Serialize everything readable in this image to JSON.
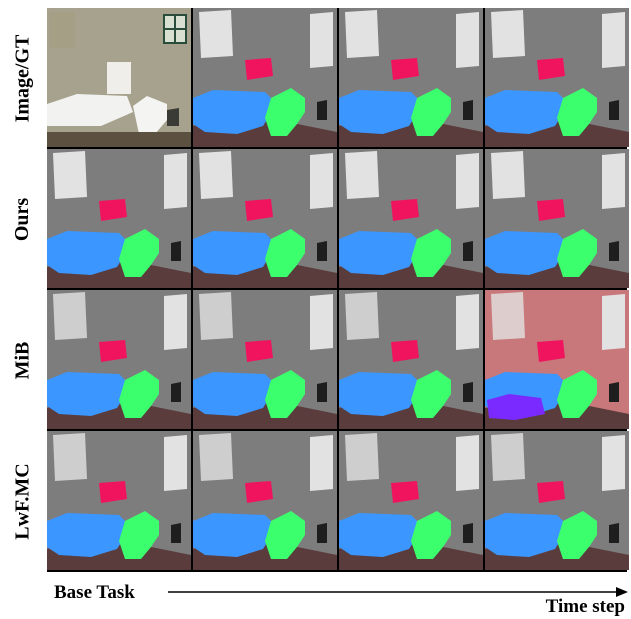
{
  "rows": [
    {
      "label": "Image/GT",
      "cells": [
        "photo",
        "seg",
        "seg",
        "seg"
      ]
    },
    {
      "label": "Ours",
      "cells": [
        "seg",
        "seg",
        "seg",
        "seg"
      ]
    },
    {
      "label": "MiB",
      "cells": [
        "seg",
        "seg",
        "seg",
        "seg-pink"
      ]
    },
    {
      "label": "LwF.MC",
      "cells": [
        "seg",
        "seg",
        "seg",
        "seg"
      ]
    }
  ],
  "axis": {
    "left_label": "Base Task",
    "right_label": "Time step"
  },
  "colors": {
    "background_class": "#7d7d7d",
    "wall_class": "#e2e2e2",
    "towel_class": "#f0145f",
    "sink_class": "#3c96ff",
    "toilet_class": "#3cff6e",
    "floor_class": "#5a3c3c",
    "wrong_pink": "#c8787a",
    "wrong_purple": "#7a2aff"
  }
}
